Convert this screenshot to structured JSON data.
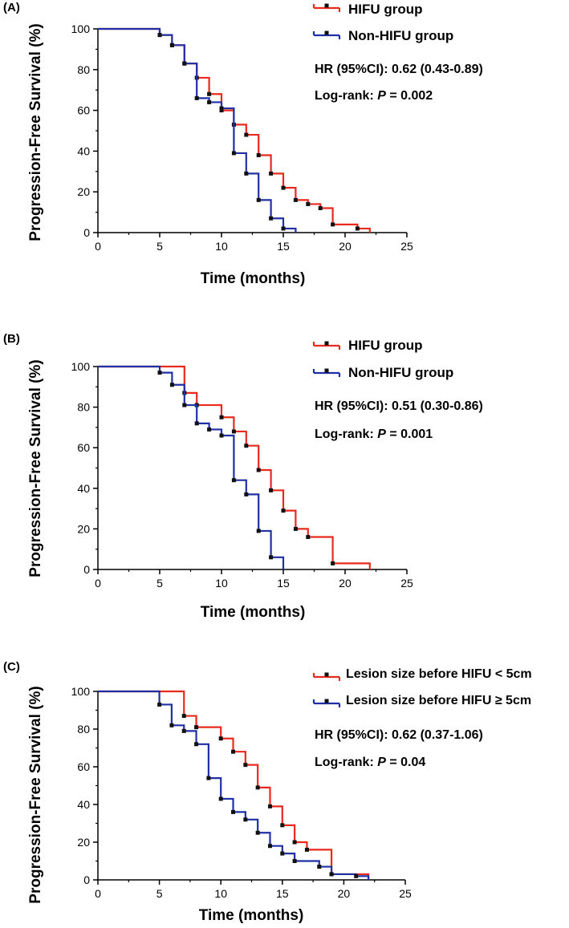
{
  "chart_data": [
    {
      "type": "line",
      "step": true,
      "panel_label": "(A)",
      "xlabel": "Time (months)",
      "ylabel": "Progression-Free Survival (%)",
      "xlim": [
        0,
        25
      ],
      "ylim": [
        0,
        100
      ],
      "xticks": [
        0,
        5,
        10,
        15,
        20,
        25
      ],
      "yticks": [
        0,
        20,
        40,
        60,
        80,
        100
      ],
      "colors": {
        "red": "#e8291c",
        "blue": "#1f2fa6"
      },
      "legend": [
        "HIFU group",
        "Non-HIFU group"
      ],
      "hr_text": "HR (95%CI): 0.62 (0.43-0.89)",
      "logrank_prefix": "Log-rank: ",
      "p_symbol": "P",
      "p_value_text": " = 0.002",
      "series": [
        {
          "name": "HIFU group",
          "color": "red",
          "x": [
            0,
            5,
            6,
            7,
            8,
            9,
            10,
            11,
            12,
            13,
            14,
            15,
            16,
            17,
            18,
            19,
            21,
            22
          ],
          "y": [
            100,
            97,
            92,
            83,
            76,
            68,
            60,
            53,
            48,
            38,
            29,
            22,
            16,
            14,
            12,
            4,
            2,
            0
          ],
          "censored": []
        },
        {
          "name": "Non-HIFU group",
          "color": "blue",
          "x": [
            0,
            5,
            6,
            7,
            8,
            9,
            10,
            11,
            12,
            13,
            14,
            15,
            16
          ],
          "y": [
            100,
            97,
            92,
            83,
            66,
            64,
            61,
            39,
            29,
            16,
            7,
            2,
            0
          ],
          "censored": []
        }
      ]
    },
    {
      "type": "line",
      "step": true,
      "panel_label": "(B)",
      "xlabel": "Time (months)",
      "ylabel": "Progression-Free Survival (%)",
      "xlim": [
        0,
        25
      ],
      "ylim": [
        0,
        100
      ],
      "xticks": [
        0,
        5,
        10,
        15,
        20,
        25
      ],
      "yticks": [
        0,
        20,
        40,
        60,
        80,
        100
      ],
      "colors": {
        "red": "#e8291c",
        "blue": "#1f2fa6"
      },
      "legend": [
        "HIFU group",
        "Non-HIFU group"
      ],
      "hr_text": "HR (95%CI): 0.51 (0.30-0.86)",
      "logrank_prefix": "Log-rank: ",
      "p_symbol": "P",
      "p_value_text": " = 0.001",
      "series": [
        {
          "name": "HIFU group",
          "color": "red",
          "x": [
            0,
            7,
            8,
            10,
            11,
            12,
            13,
            14,
            15,
            16,
            17,
            19,
            22
          ],
          "y": [
            100,
            87,
            81,
            75,
            68,
            61,
            49,
            39,
            29,
            20,
            16,
            3,
            0
          ],
          "censored": []
        },
        {
          "name": "Non-HIFU group",
          "color": "blue",
          "x": [
            0,
            5,
            6,
            7,
            8,
            9,
            10,
            11,
            12,
            13,
            14,
            15
          ],
          "y": [
            100,
            97,
            91,
            81,
            72,
            69,
            66,
            44,
            37,
            19,
            6,
            0
          ],
          "censored": []
        }
      ]
    },
    {
      "type": "line",
      "step": true,
      "panel_label": "(C)",
      "xlabel": "Time (months)",
      "ylabel": "Progression-Free Survival (%)",
      "xlim": [
        0,
        25
      ],
      "ylim": [
        0,
        100
      ],
      "xticks": [
        0,
        5,
        10,
        15,
        20,
        25
      ],
      "yticks": [
        0,
        20,
        40,
        60,
        80,
        100
      ],
      "colors": {
        "red": "#e8291c",
        "blue": "#1f2fa6"
      },
      "legend": [
        "Lesion size before HIFU < 5cm",
        "Lesion size before HIFU ≥ 5cm"
      ],
      "hr_text": "HR (95%CI): 0.62 (0.37-1.06)",
      "logrank_prefix": "Log-rank: ",
      "p_symbol": "P",
      "p_value_text": " = 0.04",
      "series": [
        {
          "name": "Lesion size before HIFU < 5cm",
          "color": "red",
          "x": [
            0,
            7,
            8,
            10,
            11,
            12,
            13,
            14,
            15,
            16,
            17,
            19,
            22
          ],
          "y": [
            100,
            87,
            81,
            75,
            68,
            61,
            49,
            39,
            29,
            20,
            16,
            3,
            0
          ],
          "censored": []
        },
        {
          "name": "Lesion size before HIFU ≥ 5cm",
          "color": "blue",
          "x": [
            0,
            5,
            6,
            7,
            8,
            9,
            10,
            11,
            12,
            13,
            14,
            15,
            16,
            18,
            19,
            21,
            22
          ],
          "y": [
            100,
            93,
            82,
            79,
            72,
            54,
            43,
            36,
            32,
            25,
            18,
            14,
            10,
            7,
            3,
            2,
            0
          ],
          "censored": []
        }
      ]
    }
  ]
}
